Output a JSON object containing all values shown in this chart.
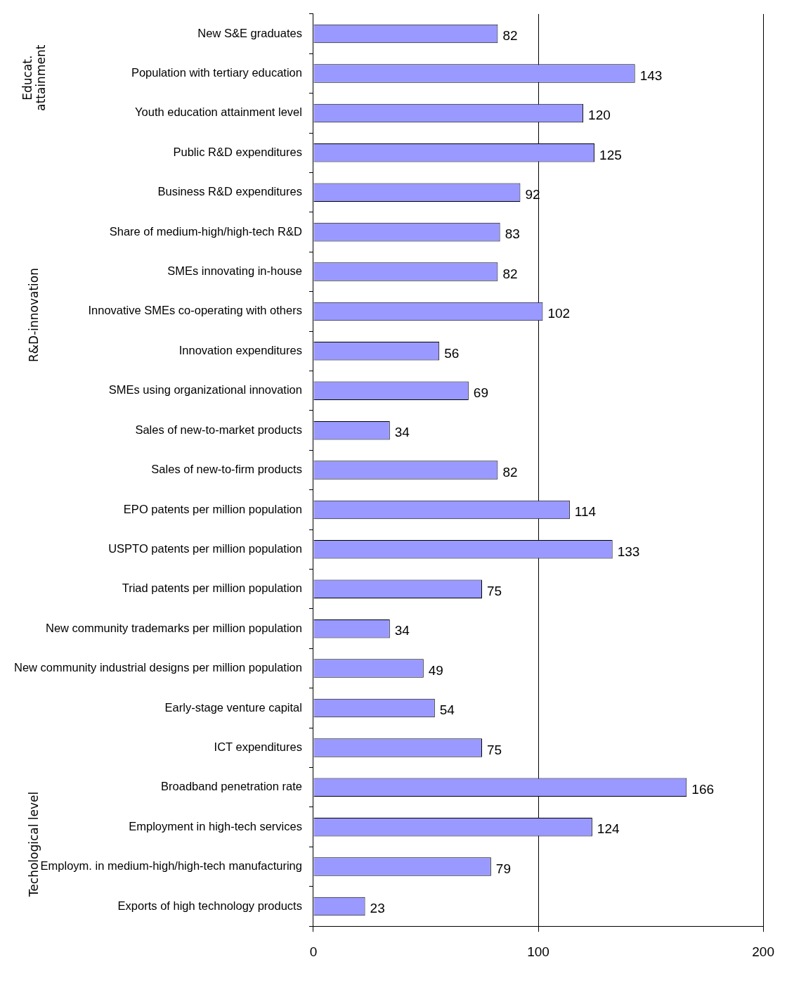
{
  "chart_data": {
    "type": "bar",
    "orientation": "horizontal",
    "categories": [
      "New S&E graduates",
      "Population with tertiary education",
      "Youth education attainment level",
      "Public R&D expenditures",
      "Business R&D expenditures",
      "Share of medium-high/high-tech R&D",
      "SMEs innovating in-house",
      "Innovative SMEs co-operating with others",
      "Innovation expenditures",
      "SMEs using organizational innovation",
      "Sales of new-to-market products",
      "Sales of new-to-firm products",
      "EPO patents per million population",
      "USPTO patents per million population",
      "Triad patents per million population",
      "New community trademarks per million population",
      "New community industrial designs per million population",
      "Early-stage venture capital",
      "ICT expenditures",
      "Broadband penetration rate",
      "Employment in high-tech services",
      "Employm. in medium-high/high-tech manufacturing",
      "Exports of high technology products"
    ],
    "values": [
      82,
      143,
      120,
      125,
      92,
      83,
      82,
      102,
      56,
      69,
      34,
      82,
      114,
      133,
      75,
      34,
      49,
      54,
      75,
      166,
      124,
      79,
      23
    ],
    "color": "#9999ff",
    "xlim": [
      0,
      200
    ],
    "xticks": [
      0,
      100,
      200
    ],
    "grid": "x",
    "data_labels": true,
    "annotations": [
      "Educat.\nattainment",
      "R&D-innovation",
      "Techological level"
    ]
  }
}
